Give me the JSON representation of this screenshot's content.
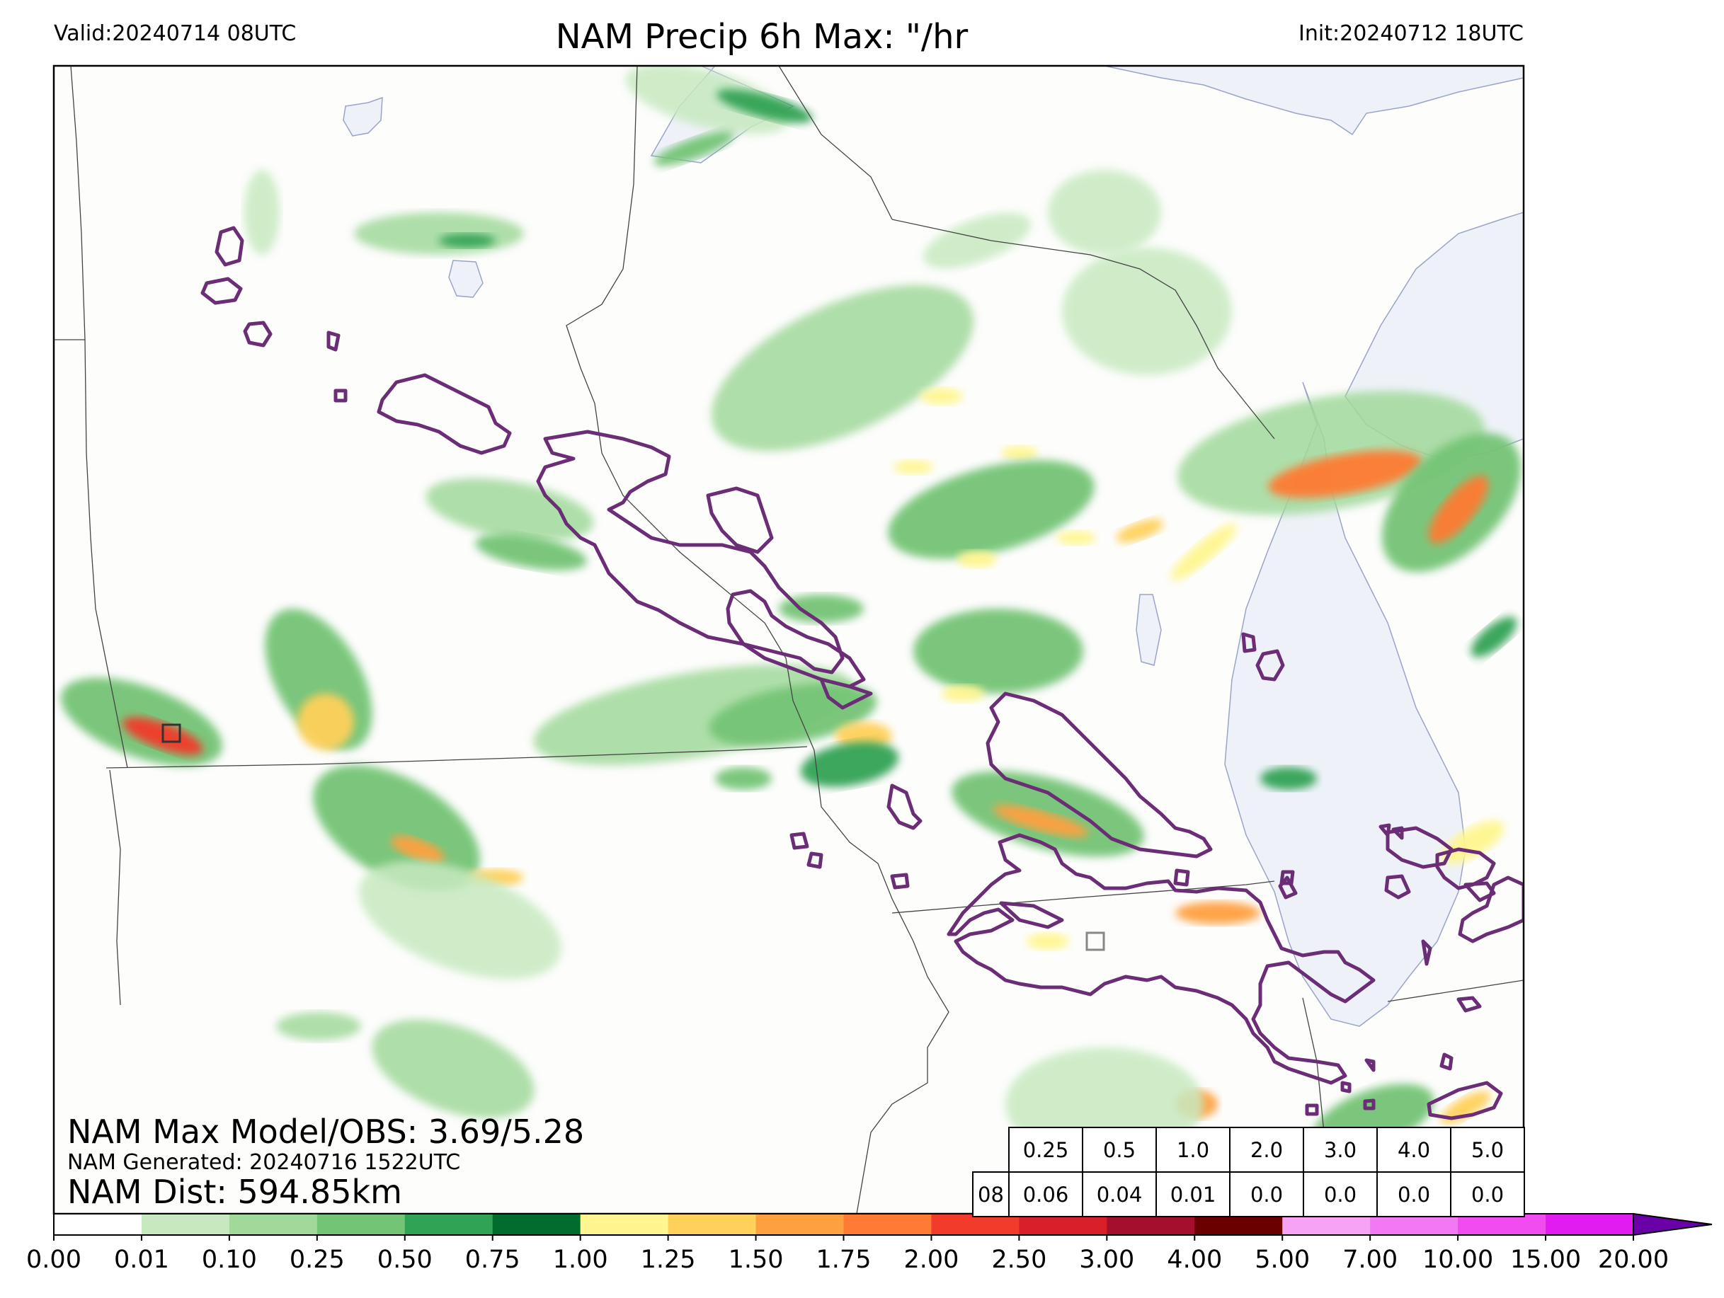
{
  "header": {
    "valid": "Valid:20240714 08UTC",
    "title": "NAM Precip 6h Max: \"/hr",
    "init": "Init:20240712 18UTC"
  },
  "stats": {
    "max_model_obs": "NAM Max Model/OBS: 3.69/5.28",
    "generated": "NAM Generated: 20240716 1522UTC",
    "dist": "NAM Dist: 594.85km"
  },
  "threshold_table": {
    "thresholds": [
      "0.25",
      "0.5",
      "1.0",
      "2.0",
      "3.0",
      "4.0",
      "5.0"
    ],
    "row_label": "08",
    "values": [
      "0.06",
      "0.04",
      "0.01",
      "0.0",
      "0.0",
      "0.0",
      "0.0"
    ]
  },
  "colorbar": {
    "labels": [
      "0.00",
      "0.01",
      "0.10",
      "0.25",
      "0.50",
      "0.75",
      "1.00",
      "1.25",
      "1.50",
      "1.75",
      "2.00",
      "2.50",
      "3.00",
      "4.00",
      "5.00",
      "7.00",
      "10.00",
      "15.00",
      "20.00"
    ],
    "colors": [
      "#ffffff",
      "#c7e9c0",
      "#a1d99b",
      "#74c476",
      "#31a354",
      "#006d2c",
      "#fff68f",
      "#ffd05a",
      "#ffa040",
      "#ff7a33",
      "#f23b2b",
      "#d9202a",
      "#a50f2e",
      "#6b0000",
      "#f6a3f6",
      "#f279f2",
      "#f04cf0",
      "#e01cf0",
      "#9b1cd6"
    ],
    "extend_color": "#6a00a8"
  },
  "colors": {
    "lake": "#eef2f8",
    "lake_edge": "#9aa4c6",
    "border": "#444444",
    "obs_contour": "#6a2d76"
  }
}
